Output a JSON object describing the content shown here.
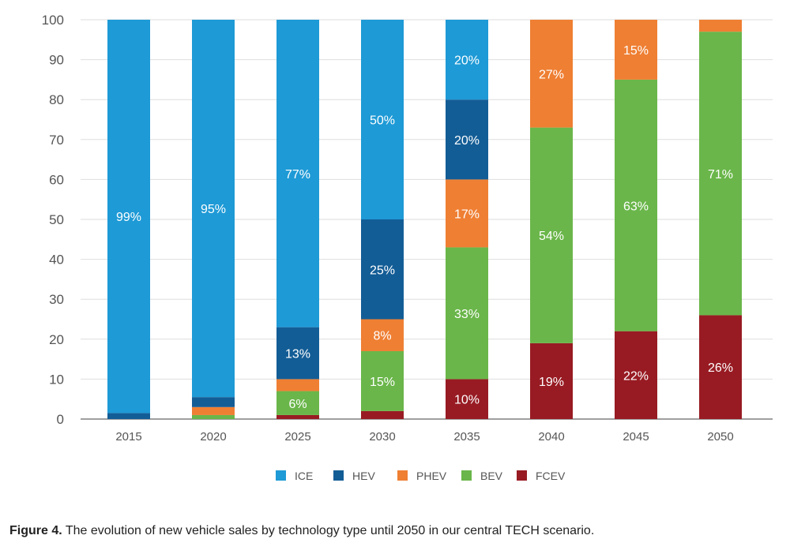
{
  "chart_data": {
    "type": "bar",
    "stacked": true,
    "title": "",
    "xlabel": "",
    "ylabel": "",
    "ylim": [
      0,
      100
    ],
    "yticks": [
      0,
      10,
      20,
      30,
      40,
      50,
      60,
      70,
      80,
      90,
      100
    ],
    "grid": true,
    "legend_position": "bottom",
    "categories": [
      "2015",
      "2020",
      "2025",
      "2030",
      "2035",
      "2040",
      "2045",
      "2050"
    ],
    "series": [
      {
        "name": "FCEV",
        "color": "#981b23",
        "values": [
          0,
          0,
          1,
          2,
          10,
          19,
          22,
          26
        ],
        "labels": [
          "",
          "",
          "",
          "",
          "10%",
          "19%",
          "22%",
          "26%"
        ]
      },
      {
        "name": "BEV",
        "color": "#6ab64a",
        "values": [
          0,
          1,
          6,
          15,
          33,
          54,
          63,
          71
        ],
        "labels": [
          "",
          "",
          "6%",
          "15%",
          "33%",
          "54%",
          "63%",
          "71%"
        ]
      },
      {
        "name": "PHEV",
        "color": "#ef7f33",
        "values": [
          0,
          2,
          3,
          8,
          17,
          27,
          15,
          3
        ],
        "labels": [
          "",
          "",
          "",
          "8%",
          "17%",
          "27%",
          "15%",
          ""
        ]
      },
      {
        "name": "HEV",
        "color": "#135d96",
        "values": [
          1.5,
          2.5,
          13,
          25,
          20,
          0,
          0,
          0
        ],
        "labels": [
          "",
          "",
          "13%",
          "25%",
          "20%",
          "",
          "",
          ""
        ]
      },
      {
        "name": "ICE",
        "color": "#1e9ad6",
        "values": [
          98.5,
          94.5,
          77,
          50,
          20,
          0,
          0,
          0
        ],
        "labels": [
          "99%",
          "95%",
          "77%",
          "50%",
          "20%",
          "",
          "",
          ""
        ]
      }
    ],
    "legend_order": [
      "ICE",
      "HEV",
      "PHEV",
      "BEV",
      "FCEV"
    ]
  },
  "caption": {
    "label": "Figure 4.",
    "text": " The evolution of new vehicle sales by technology type until 2050 in our central TECH scenario."
  }
}
